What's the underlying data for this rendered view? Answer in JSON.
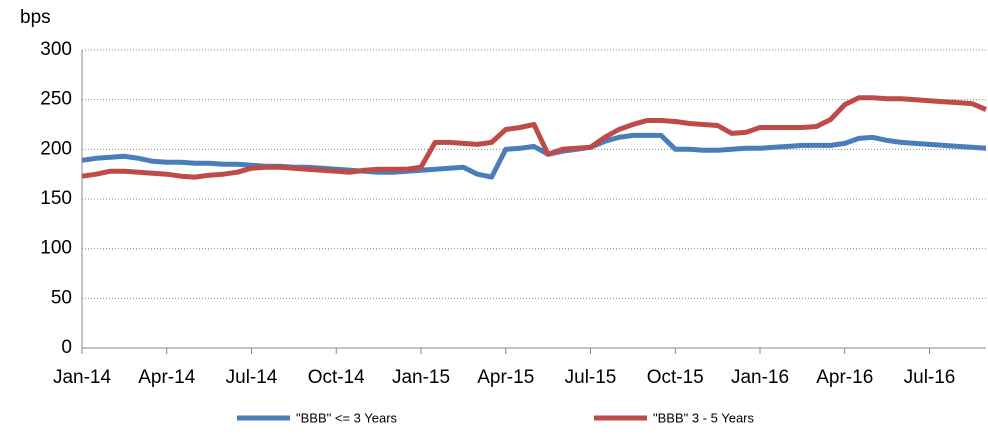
{
  "chart_data": {
    "type": "line",
    "y_label": "bps",
    "categories": [
      "Jan-14",
      null,
      null,
      null,
      null,
      null,
      "Apr-14",
      null,
      null,
      null,
      null,
      null,
      "Jul-14",
      null,
      null,
      null,
      null,
      null,
      "Oct-14",
      null,
      null,
      null,
      null,
      null,
      "Jan-15",
      null,
      null,
      null,
      null,
      null,
      "Apr-15",
      null,
      null,
      null,
      null,
      null,
      "Jul-15",
      null,
      null,
      null,
      null,
      null,
      "Oct-15",
      null,
      null,
      null,
      null,
      null,
      "Jan-16",
      null,
      null,
      null,
      null,
      null,
      "Apr-16",
      null,
      null,
      null,
      null,
      null,
      "Jul-16",
      null,
      null,
      null,
      null
    ],
    "series": [
      {
        "name": "\"BBB\" <= 3 Years",
        "color": "#4a7ebb",
        "values": [
          189,
          191,
          192,
          193,
          191,
          188,
          187,
          187,
          186,
          186,
          185,
          185,
          184,
          183,
          183,
          182,
          182,
          181,
          180,
          179,
          178,
          177,
          177,
          178,
          179,
          180,
          181,
          182,
          175,
          172,
          200,
          201,
          203,
          195,
          198,
          200,
          202,
          208,
          212,
          214,
          214,
          214,
          200,
          200,
          199,
          199,
          200,
          201,
          201,
          202,
          203,
          204,
          204,
          204,
          206,
          211,
          212,
          209,
          207,
          206,
          205,
          204,
          203,
          202,
          201
        ]
      },
      {
        "name": "\"BBB\" 3 - 5 Years",
        "color": "#be4b48",
        "values": [
          173,
          175,
          178,
          178,
          177,
          176,
          175,
          173,
          172,
          174,
          175,
          177,
          181,
          182,
          182,
          181,
          180,
          179,
          178,
          177,
          179,
          180,
          180,
          180,
          182,
          207,
          207,
          206,
          205,
          207,
          220,
          222,
          225,
          195,
          200,
          201,
          202,
          212,
          220,
          225,
          229,
          229,
          228,
          226,
          225,
          224,
          216,
          217,
          222,
          222,
          222,
          222,
          223,
          230,
          245,
          252,
          252,
          251,
          251,
          250,
          249,
          248,
          247,
          246,
          240
        ]
      }
    ],
    "ylim": [
      0,
      300
    ],
    "yticks": [
      0,
      50,
      100,
      150,
      200,
      250,
      300
    ],
    "grid": true,
    "legend": "bottom"
  }
}
